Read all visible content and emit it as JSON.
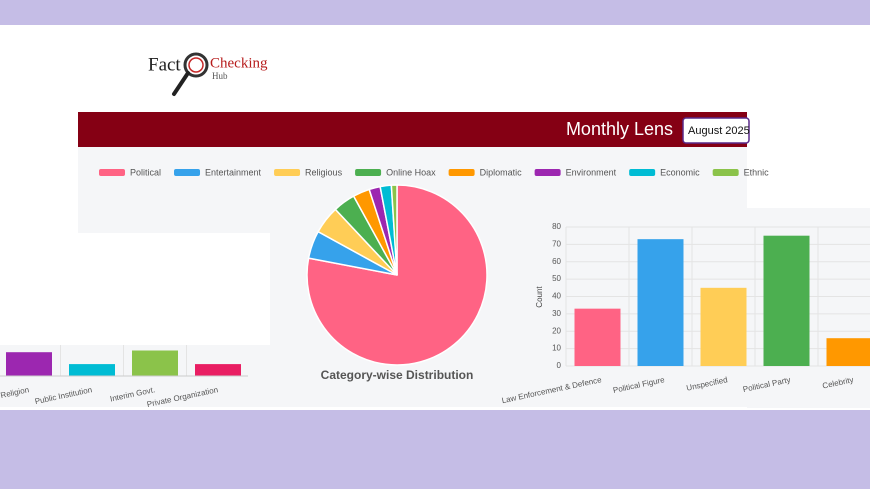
{
  "header": {
    "logo_fact": "Fact",
    "logo_checking": "Checking",
    "logo_hub": "Hub",
    "banner_title": "Monthly Lens",
    "month_select": "August 2025"
  },
  "chart_data": [
    {
      "type": "pie",
      "title": "Category-wise Distribution",
      "categories": [
        "Political",
        "Entertainment",
        "Religious",
        "Online Hoax",
        "Diplomatic",
        "Environment",
        "Economic",
        "Ethnic"
      ],
      "values": [
        78,
        5,
        5,
        4,
        3,
        2,
        2,
        1
      ],
      "colors": [
        "#ff6384",
        "#36a2eb",
        "#ffcd56",
        "#4caf50",
        "#ff9800",
        "#9c27b0",
        "#00bcd4",
        "#8bc34a"
      ],
      "legend": "top"
    },
    {
      "type": "bar",
      "ylabel": "Count",
      "categories": [
        "Law Enforcement & Defence",
        "Political Figure",
        "Unspecified",
        "Political Party",
        "Celebrity"
      ],
      "values": [
        33,
        73,
        45,
        75,
        16
      ],
      "colors": [
        "#ff6384",
        "#36a2eb",
        "#ffcd56",
        "#4caf50",
        "#ff9800"
      ],
      "ylim": [
        0,
        80
      ],
      "yticks": [
        0,
        10,
        20,
        30,
        40,
        50,
        60,
        70,
        80
      ],
      "grid": true
    },
    {
      "type": "bar",
      "categories": [
        "Religion",
        "Public Institution",
        "Interim Govt.",
        "Private Organization"
      ],
      "values": [
        14,
        7,
        15,
        7
      ],
      "colors": [
        "#9c27b0",
        "#00bcd4",
        "#8bc34a",
        "#e91e63"
      ]
    }
  ]
}
